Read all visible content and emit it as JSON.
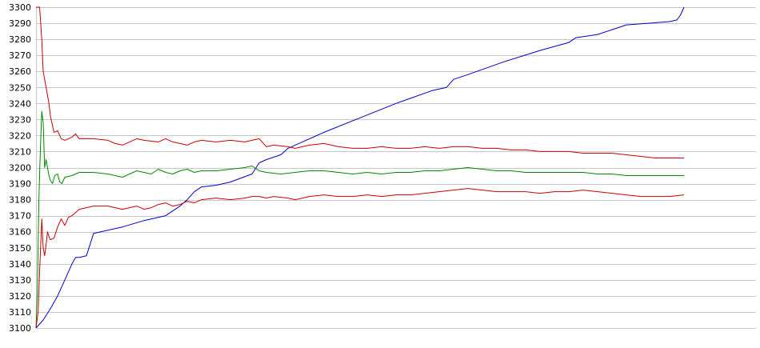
{
  "chart_data": {
    "type": "line",
    "title": "",
    "xlabel": "",
    "ylabel": "",
    "ylim": [
      3100,
      3300
    ],
    "yticks": [
      3100,
      3110,
      3120,
      3130,
      3140,
      3150,
      3160,
      3170,
      3180,
      3190,
      3200,
      3210,
      3220,
      3230,
      3240,
      3250,
      3260,
      3270,
      3280,
      3290,
      3300
    ],
    "grid": true,
    "legend": "none",
    "x_range": [
      0,
      100
    ],
    "series": [
      {
        "color": "#0000cc",
        "points": [
          [
            0,
            3100
          ],
          [
            1,
            3105
          ],
          [
            2,
            3112
          ],
          [
            3,
            3120
          ],
          [
            4,
            3130
          ],
          [
            5,
            3140
          ],
          [
            5.5,
            3144
          ],
          [
            6,
            3144
          ],
          [
            7,
            3145
          ],
          [
            8,
            3159
          ],
          [
            9,
            3160
          ],
          [
            12,
            3163
          ],
          [
            15,
            3167
          ],
          [
            18,
            3170
          ],
          [
            20,
            3176
          ],
          [
            21,
            3180
          ],
          [
            22,
            3185
          ],
          [
            23,
            3188
          ],
          [
            25,
            3189
          ],
          [
            27,
            3191
          ],
          [
            30,
            3196
          ],
          [
            31,
            3203
          ],
          [
            32,
            3205
          ],
          [
            34,
            3208
          ],
          [
            35,
            3212
          ],
          [
            36,
            3214
          ],
          [
            40,
            3222
          ],
          [
            45,
            3231
          ],
          [
            50,
            3240
          ],
          [
            55,
            3248
          ],
          [
            57,
            3250
          ],
          [
            58,
            3255
          ],
          [
            60,
            3258
          ],
          [
            65,
            3266
          ],
          [
            70,
            3273
          ],
          [
            74,
            3278
          ],
          [
            75,
            3281
          ],
          [
            78,
            3283
          ],
          [
            80,
            3286
          ],
          [
            82,
            3289
          ],
          [
            85,
            3290
          ],
          [
            88,
            3291
          ],
          [
            89,
            3292
          ],
          [
            89.5,
            3295
          ],
          [
            90,
            3300
          ]
        ]
      },
      {
        "color": "#cc0000",
        "points": [
          [
            0,
            3300
          ],
          [
            0.3,
            3300
          ],
          [
            0.5,
            3300
          ],
          [
            0.8,
            3280
          ],
          [
            1,
            3260
          ],
          [
            1.4,
            3250
          ],
          [
            1.8,
            3240
          ],
          [
            2,
            3232
          ],
          [
            2.5,
            3222
          ],
          [
            3,
            3223
          ],
          [
            3.5,
            3218
          ],
          [
            4,
            3217
          ],
          [
            5,
            3219
          ],
          [
            5.5,
            3221
          ],
          [
            6,
            3218
          ],
          [
            8,
            3218
          ],
          [
            10,
            3217
          ],
          [
            11,
            3215
          ],
          [
            12,
            3214
          ],
          [
            13,
            3216
          ],
          [
            14,
            3218
          ],
          [
            15,
            3217
          ],
          [
            17,
            3216
          ],
          [
            18,
            3218
          ],
          [
            19,
            3216
          ],
          [
            20,
            3215
          ],
          [
            21,
            3214
          ],
          [
            22,
            3216
          ],
          [
            23,
            3217
          ],
          [
            25,
            3216
          ],
          [
            27,
            3217
          ],
          [
            29,
            3216
          ],
          [
            30,
            3217
          ],
          [
            31,
            3218
          ],
          [
            32,
            3213
          ],
          [
            33,
            3214
          ],
          [
            35,
            3213
          ],
          [
            36,
            3212
          ],
          [
            37,
            3213
          ],
          [
            38,
            3214
          ],
          [
            40,
            3215
          ],
          [
            42,
            3213
          ],
          [
            44,
            3212
          ],
          [
            46,
            3212
          ],
          [
            48,
            3213
          ],
          [
            50,
            3212
          ],
          [
            52,
            3212
          ],
          [
            54,
            3213
          ],
          [
            56,
            3212
          ],
          [
            58,
            3213
          ],
          [
            60,
            3213
          ],
          [
            62,
            3212
          ],
          [
            64,
            3212
          ],
          [
            66,
            3211
          ],
          [
            68,
            3211
          ],
          [
            70,
            3210
          ],
          [
            72,
            3210
          ],
          [
            74,
            3210
          ],
          [
            76,
            3209
          ],
          [
            78,
            3209
          ],
          [
            80,
            3209
          ],
          [
            82,
            3208
          ],
          [
            84,
            3207
          ],
          [
            86,
            3206
          ],
          [
            88,
            3206
          ],
          [
            90,
            3206
          ]
        ]
      },
      {
        "color": "#008800",
        "points": [
          [
            0,
            3100
          ],
          [
            0.2,
            3125
          ],
          [
            0.4,
            3180
          ],
          [
            0.6,
            3210
          ],
          [
            0.8,
            3235
          ],
          [
            1,
            3228
          ],
          [
            1.2,
            3200
          ],
          [
            1.4,
            3205
          ],
          [
            1.6,
            3200
          ],
          [
            1.8,
            3195
          ],
          [
            2,
            3192
          ],
          [
            2.3,
            3190
          ],
          [
            2.6,
            3195
          ],
          [
            3,
            3196
          ],
          [
            3.3,
            3191
          ],
          [
            3.6,
            3190
          ],
          [
            4,
            3194
          ],
          [
            5,
            3195
          ],
          [
            6,
            3197
          ],
          [
            8,
            3197
          ],
          [
            10,
            3196
          ],
          [
            11,
            3195
          ],
          [
            12,
            3194
          ],
          [
            13,
            3196
          ],
          [
            14,
            3198
          ],
          [
            15,
            3197
          ],
          [
            16,
            3196
          ],
          [
            17,
            3199
          ],
          [
            18,
            3197
          ],
          [
            19,
            3196
          ],
          [
            20,
            3198
          ],
          [
            21,
            3199
          ],
          [
            22,
            3197
          ],
          [
            23,
            3198
          ],
          [
            25,
            3198
          ],
          [
            27,
            3199
          ],
          [
            29,
            3200
          ],
          [
            30,
            3201
          ],
          [
            31,
            3198
          ],
          [
            32,
            3197
          ],
          [
            34,
            3196
          ],
          [
            36,
            3197
          ],
          [
            38,
            3198
          ],
          [
            40,
            3198
          ],
          [
            42,
            3197
          ],
          [
            44,
            3196
          ],
          [
            46,
            3197
          ],
          [
            48,
            3196
          ],
          [
            50,
            3197
          ],
          [
            52,
            3197
          ],
          [
            54,
            3198
          ],
          [
            56,
            3198
          ],
          [
            58,
            3199
          ],
          [
            60,
            3200
          ],
          [
            62,
            3199
          ],
          [
            64,
            3198
          ],
          [
            66,
            3198
          ],
          [
            68,
            3197
          ],
          [
            70,
            3197
          ],
          [
            72,
            3197
          ],
          [
            74,
            3197
          ],
          [
            76,
            3197
          ],
          [
            78,
            3196
          ],
          [
            80,
            3196
          ],
          [
            82,
            3195
          ],
          [
            84,
            3195
          ],
          [
            86,
            3195
          ],
          [
            88,
            3195
          ],
          [
            90,
            3195
          ]
        ]
      },
      {
        "color": "#cc0000",
        "points": [
          [
            0,
            3100
          ],
          [
            0.3,
            3110
          ],
          [
            0.5,
            3135
          ],
          [
            0.8,
            3168
          ],
          [
            1,
            3150
          ],
          [
            1.2,
            3145
          ],
          [
            1.4,
            3152
          ],
          [
            1.6,
            3160
          ],
          [
            1.8,
            3157
          ],
          [
            2,
            3155
          ],
          [
            2.5,
            3156
          ],
          [
            3,
            3163
          ],
          [
            3.5,
            3168
          ],
          [
            4,
            3164
          ],
          [
            4.5,
            3169
          ],
          [
            5,
            3170
          ],
          [
            5.5,
            3172
          ],
          [
            6,
            3174
          ],
          [
            7,
            3175
          ],
          [
            8,
            3176
          ],
          [
            10,
            3176
          ],
          [
            11,
            3175
          ],
          [
            12,
            3174
          ],
          [
            13,
            3175
          ],
          [
            14,
            3176
          ],
          [
            15,
            3174
          ],
          [
            16,
            3175
          ],
          [
            17,
            3177
          ],
          [
            18,
            3178
          ],
          [
            19,
            3176
          ],
          [
            20,
            3177
          ],
          [
            21,
            3179
          ],
          [
            22,
            3178
          ],
          [
            23,
            3180
          ],
          [
            25,
            3181
          ],
          [
            27,
            3180
          ],
          [
            29,
            3181
          ],
          [
            30,
            3182
          ],
          [
            31,
            3182
          ],
          [
            32,
            3181
          ],
          [
            33,
            3182
          ],
          [
            35,
            3181
          ],
          [
            36,
            3180
          ],
          [
            38,
            3182
          ],
          [
            40,
            3183
          ],
          [
            42,
            3182
          ],
          [
            44,
            3182
          ],
          [
            46,
            3183
          ],
          [
            48,
            3182
          ],
          [
            50,
            3183
          ],
          [
            52,
            3183
          ],
          [
            54,
            3184
          ],
          [
            56,
            3185
          ],
          [
            58,
            3186
          ],
          [
            60,
            3187
          ],
          [
            62,
            3186
          ],
          [
            64,
            3185
          ],
          [
            66,
            3185
          ],
          [
            68,
            3185
          ],
          [
            70,
            3184
          ],
          [
            72,
            3185
          ],
          [
            74,
            3185
          ],
          [
            76,
            3186
          ],
          [
            78,
            3185
          ],
          [
            80,
            3184
          ],
          [
            82,
            3183
          ],
          [
            84,
            3182
          ],
          [
            86,
            3182
          ],
          [
            88,
            3182
          ],
          [
            90,
            3183
          ]
        ]
      }
    ]
  }
}
